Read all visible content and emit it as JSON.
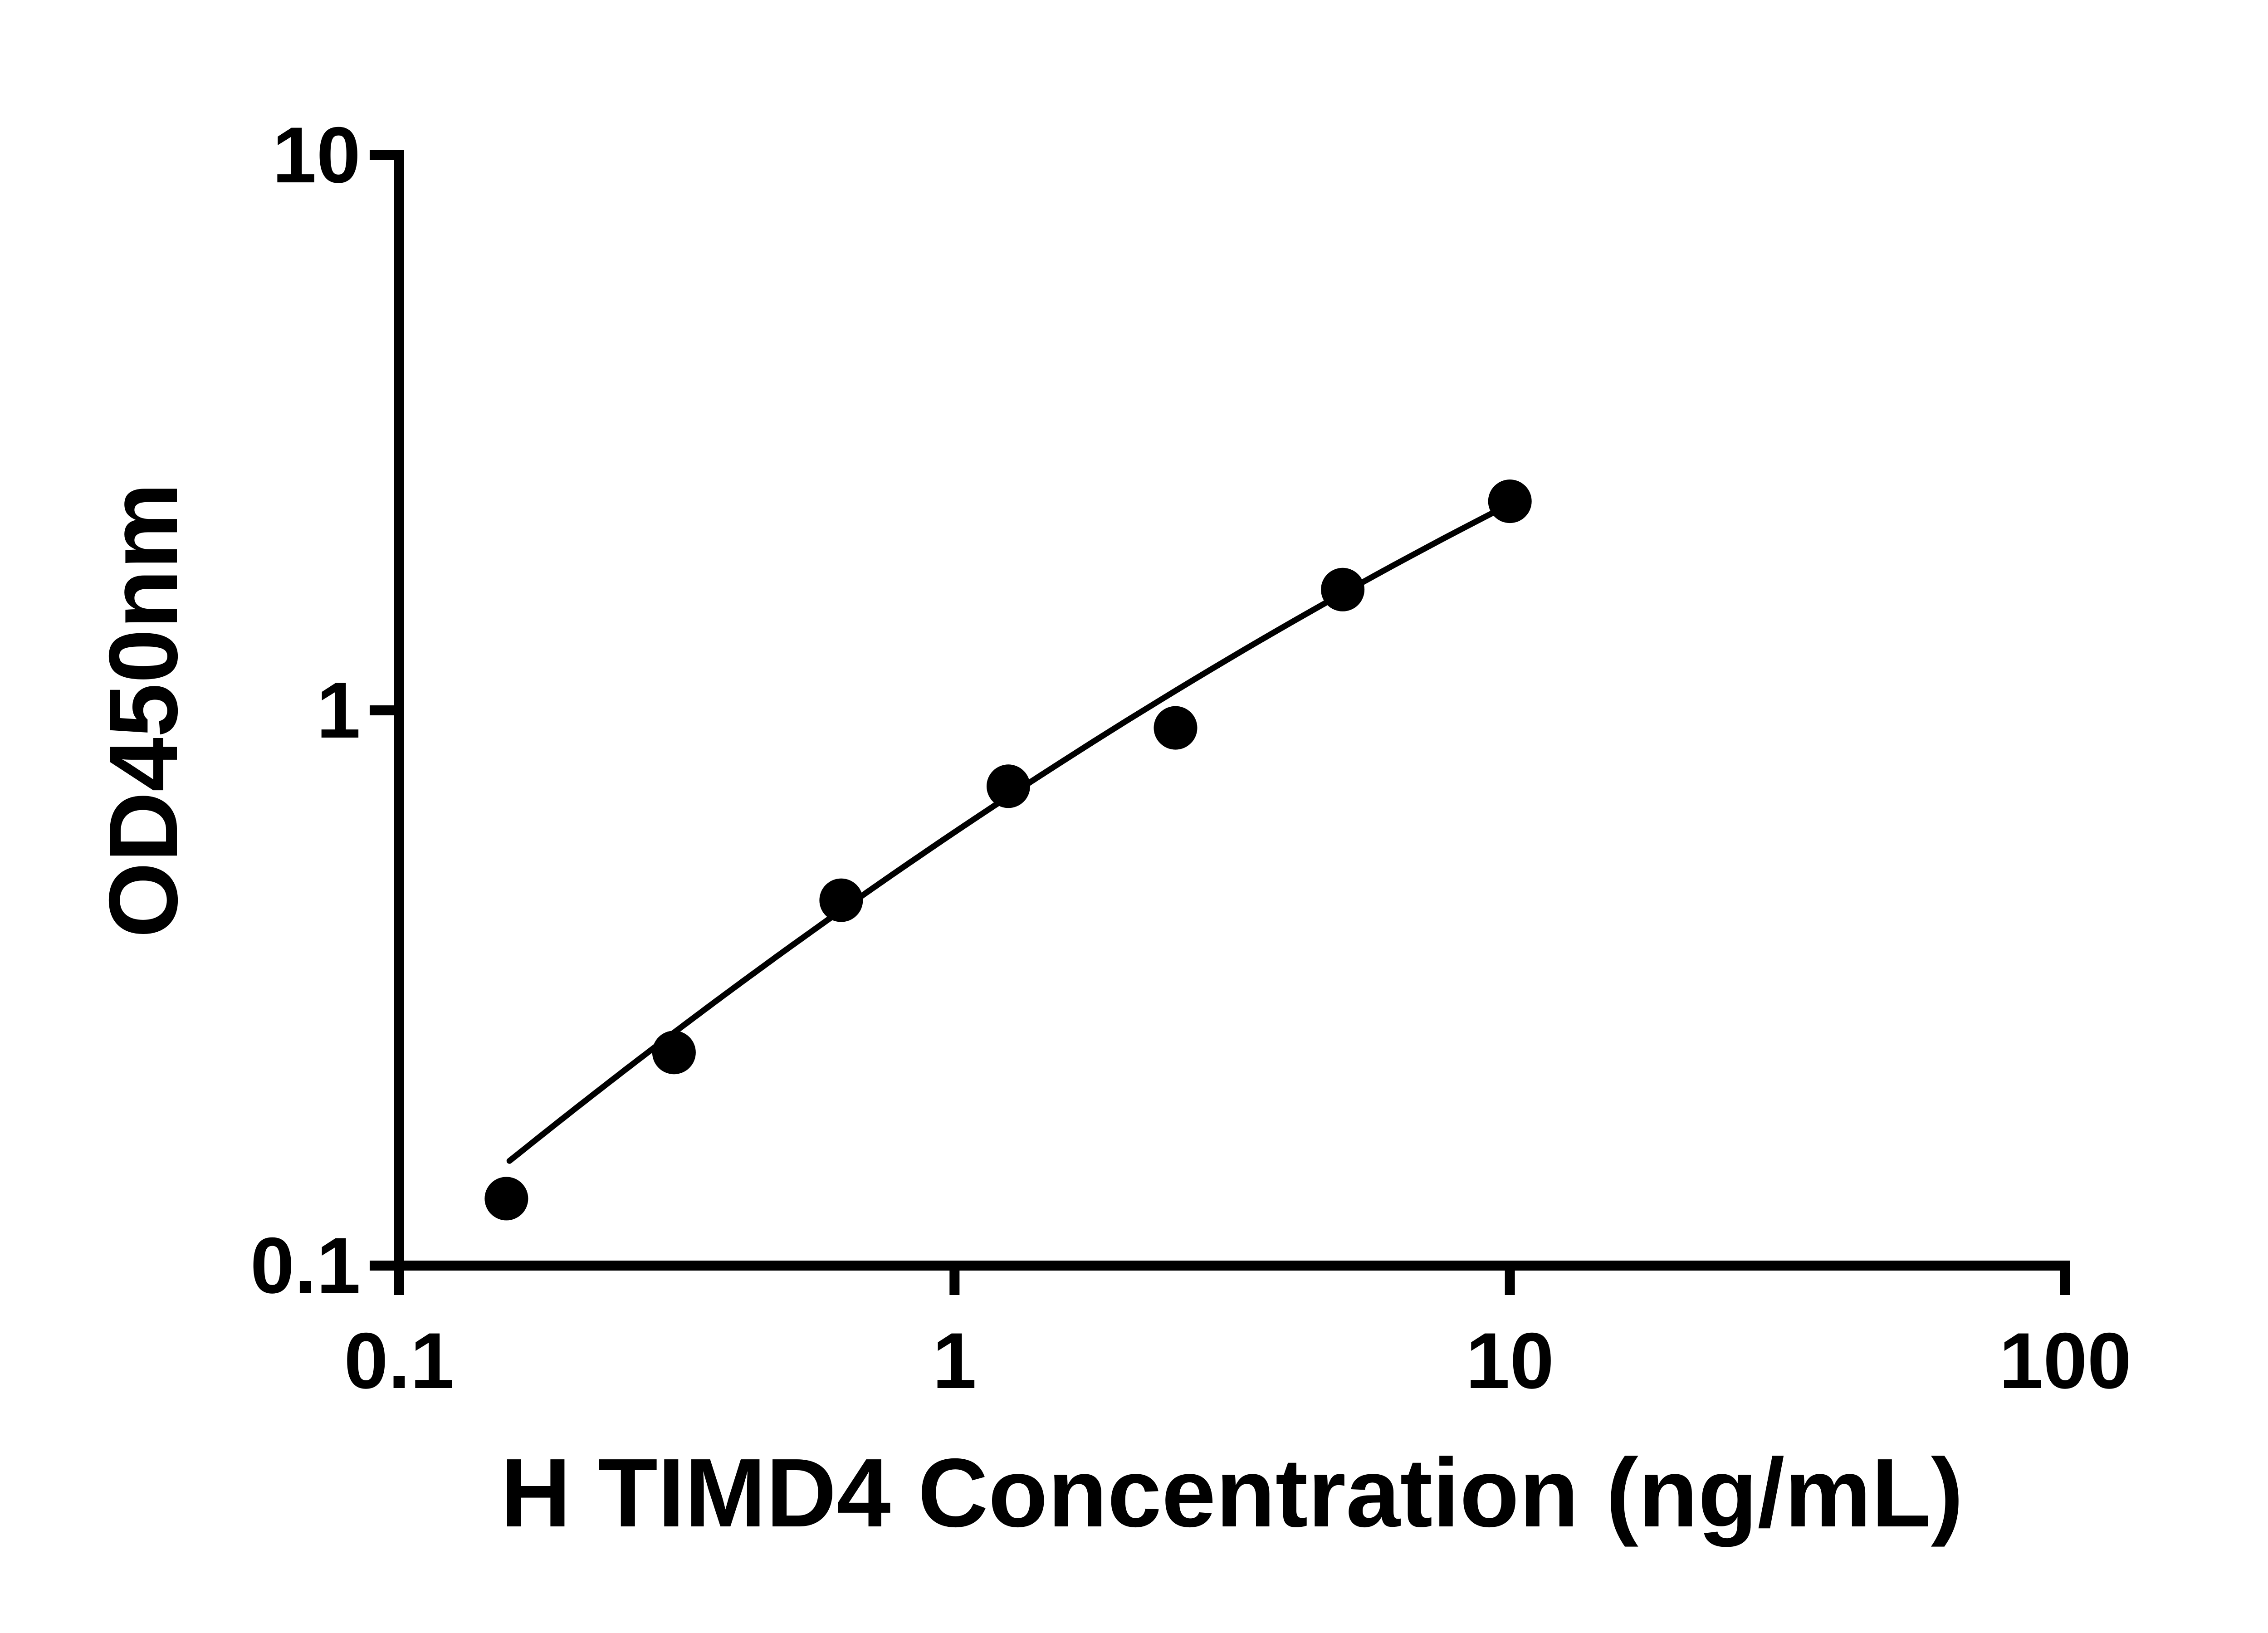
{
  "chart_data": {
    "type": "scatter",
    "title": "",
    "xlabel": "H TIMD4 Concentration (ng/mL)",
    "ylabel": "OD450nm",
    "x_scale": "log10",
    "y_scale": "log10",
    "xlim": [
      0.1,
      100
    ],
    "ylim": [
      0.1,
      10
    ],
    "x_ticks": [
      0.1,
      1,
      10,
      100
    ],
    "x_tick_labels": [
      "0.1",
      "1",
      "10",
      "100"
    ],
    "y_ticks": [
      0.1,
      1,
      10
    ],
    "y_tick_labels": [
      "0.1",
      "1",
      "10"
    ],
    "grid": false,
    "legend": false,
    "marker_color": "#000000",
    "line_color": "#000000",
    "axis_color": "#000000",
    "points": [
      {
        "x": 0.156,
        "y": 0.132
      },
      {
        "x": 0.3125,
        "y": 0.242
      },
      {
        "x": 0.625,
        "y": 0.455
      },
      {
        "x": 1.25,
        "y": 0.73
      },
      {
        "x": 2.5,
        "y": 0.93
      },
      {
        "x": 5,
        "y": 1.65
      },
      {
        "x": 10,
        "y": 2.38
      }
    ],
    "fit_line": {
      "type": "quadratic_loglog",
      "a": -0.082,
      "b": 0.673,
      "c": -0.2195,
      "x_start": 0.158,
      "x_end": 10
    }
  }
}
